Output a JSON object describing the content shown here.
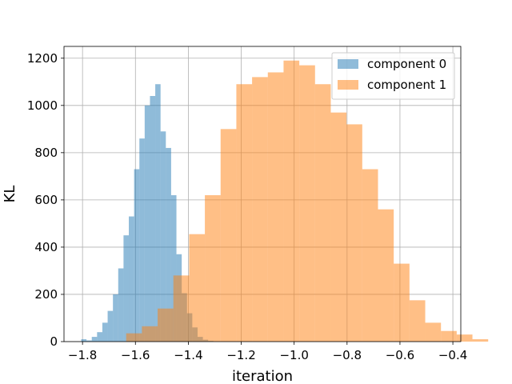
{
  "chart_data": {
    "type": "bar",
    "title": "",
    "xlabel": "iteration",
    "ylabel": "KL",
    "xlim": [
      -1.87,
      -0.37
    ],
    "ylim": [
      0,
      1250
    ],
    "xticks": [
      -1.8,
      -1.6,
      -1.4,
      -1.2,
      -1.0,
      -0.8,
      -0.6,
      -0.4
    ],
    "xtick_labels": [
      "−1.8",
      "−1.6",
      "−1.4",
      "−1.2",
      "−1.0",
      "−0.8",
      "−0.6",
      "−0.4"
    ],
    "yticks": [
      0,
      200,
      400,
      600,
      800,
      1000,
      1200
    ],
    "ytick_labels": [
      "0",
      "200",
      "400",
      "600",
      "800",
      "1000",
      "1200"
    ],
    "grid": true,
    "legend_position": "top-right",
    "series": [
      {
        "name": "component 0",
        "color": "#1f77b4",
        "alpha": 0.5,
        "bin_start": -1.805,
        "bin_width": 0.02,
        "values": [
          10,
          5,
          20,
          40,
          80,
          130,
          200,
          310,
          450,
          530,
          730,
          860,
          1000,
          1040,
          1090,
          890,
          820,
          620,
          370,
          205,
          120,
          60,
          20,
          8,
          3
        ]
      },
      {
        "name": "component 1",
        "color": "#ff7f0e",
        "alpha": 0.5,
        "bin_start": -1.635,
        "bin_width": 0.0595,
        "values": [
          35,
          65,
          140,
          280,
          455,
          620,
          900,
          1090,
          1120,
          1140,
          1190,
          1170,
          1090,
          970,
          920,
          730,
          560,
          330,
          175,
          80,
          45,
          30,
          10
        ]
      }
    ]
  }
}
